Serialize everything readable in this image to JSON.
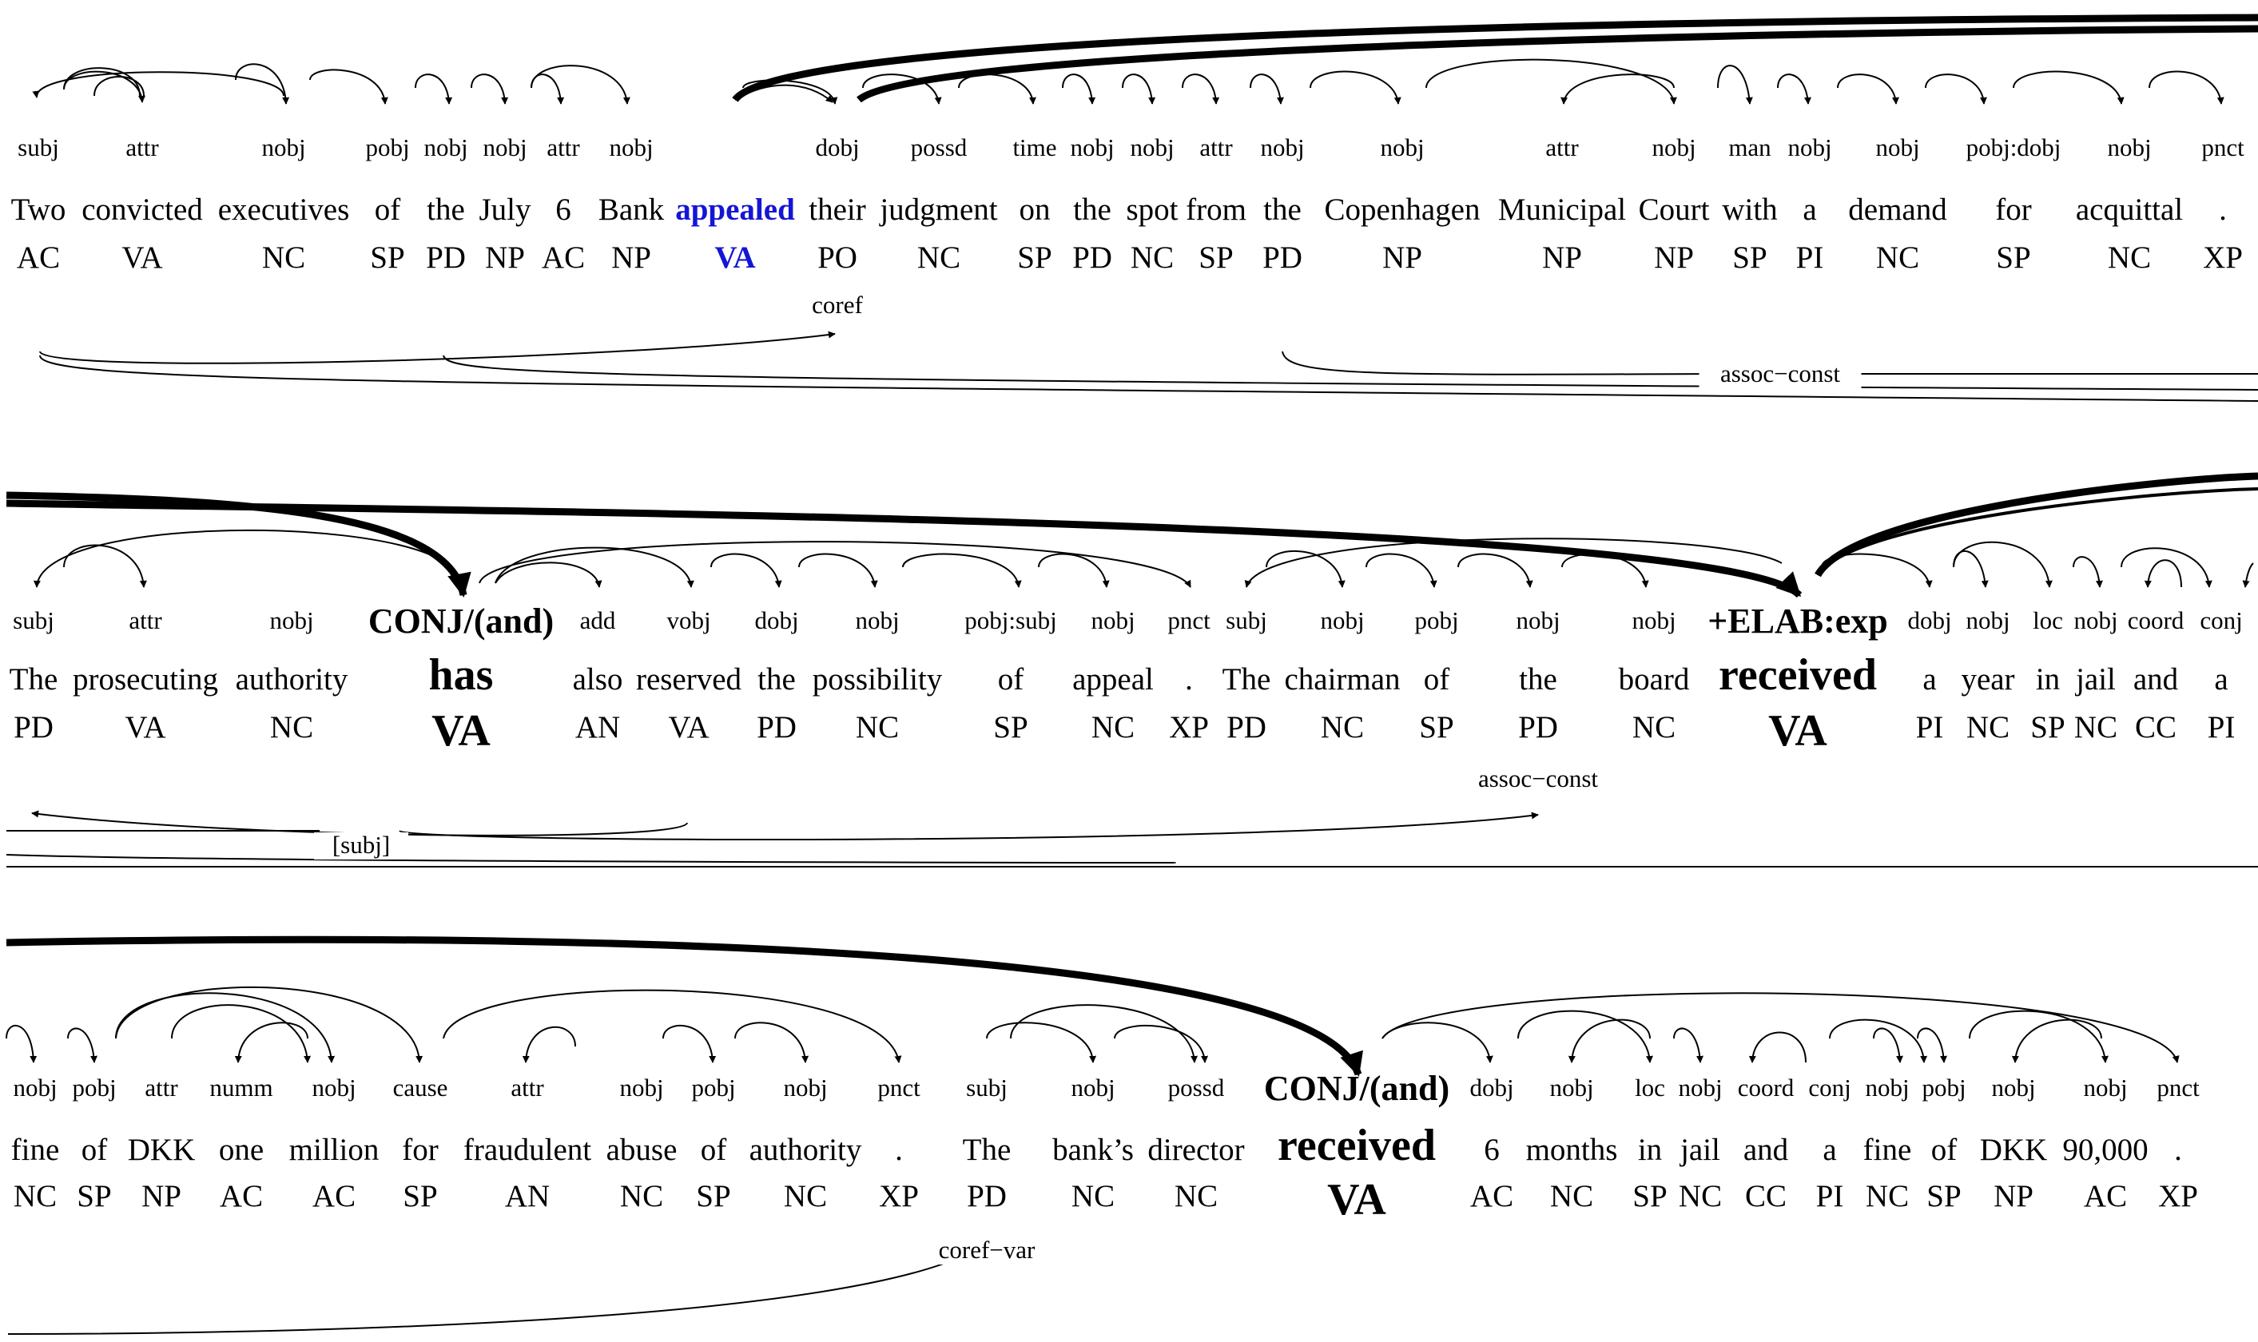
{
  "rows": [
    {
      "tokens": [
        {
          "word": "Two",
          "tag": "AC",
          "rel": "subj"
        },
        {
          "word": "convicted",
          "tag": "VA",
          "rel": "attr"
        },
        {
          "word": "executives",
          "tag": "NC",
          "rel": "nobj"
        },
        {
          "word": "of",
          "tag": "SP",
          "rel": "pobj"
        },
        {
          "word": "the",
          "tag": "PD",
          "rel": "nobj"
        },
        {
          "word": "July",
          "tag": "NP",
          "rel": "nobj"
        },
        {
          "word": "6",
          "tag": "AC",
          "rel": "attr"
        },
        {
          "word": "Bank",
          "tag": "NP",
          "rel": "nobj"
        },
        {
          "word": "appealed",
          "tag": "VA",
          "rel": "",
          "style": "blue"
        },
        {
          "word": "their",
          "tag": "PO",
          "rel": "dobj"
        },
        {
          "word": "judgment",
          "tag": "NC",
          "rel": "possd"
        },
        {
          "word": "on",
          "tag": "SP",
          "rel": "time"
        },
        {
          "word": "the",
          "tag": "PD",
          "rel": "nobj"
        },
        {
          "word": "spot",
          "tag": "NC",
          "rel": "nobj"
        },
        {
          "word": "from",
          "tag": "SP",
          "rel": "attr"
        },
        {
          "word": "the",
          "tag": "PD",
          "rel": "nobj"
        },
        {
          "word": "Copenhagen",
          "tag": "NP",
          "rel": "nobj"
        },
        {
          "word": "Municipal",
          "tag": "NP",
          "rel": "attr"
        },
        {
          "word": "Court",
          "tag": "NP",
          "rel": "nobj"
        },
        {
          "word": "with",
          "tag": "SP",
          "rel": "man"
        },
        {
          "word": "a",
          "tag": "PI",
          "rel": "nobj"
        },
        {
          "word": "demand",
          "tag": "NC",
          "rel": "nobj"
        },
        {
          "word": "for",
          "tag": "SP",
          "rel": "pobj:dobj"
        },
        {
          "word": "acquittal",
          "tag": "NC",
          "rel": "nobj"
        },
        {
          "word": ".",
          "tag": "XP",
          "rel": "pnct"
        }
      ],
      "notes": [
        "coref",
        "assoc−const"
      ]
    },
    {
      "tokens": [
        {
          "word": "The",
          "tag": "PD",
          "rel": "subj"
        },
        {
          "word": "prosecuting",
          "tag": "VA",
          "rel": "attr"
        },
        {
          "word": "authority",
          "tag": "NC",
          "rel": "nobj"
        },
        {
          "word": "has",
          "tag": "VA",
          "rel": "CONJ/(and)",
          "style": "big"
        },
        {
          "word": "also",
          "tag": "AN",
          "rel": "add"
        },
        {
          "word": "reserved",
          "tag": "VA",
          "rel": "vobj"
        },
        {
          "word": "the",
          "tag": "PD",
          "rel": "dobj"
        },
        {
          "word": "possibility",
          "tag": "NC",
          "rel": "nobj"
        },
        {
          "word": "of",
          "tag": "SP",
          "rel": "pobj:subj"
        },
        {
          "word": "appeal",
          "tag": "NC",
          "rel": "nobj"
        },
        {
          "word": ".",
          "tag": "XP",
          "rel": "pnct"
        },
        {
          "word": "The",
          "tag": "PD",
          "rel": "subj"
        },
        {
          "word": "chairman",
          "tag": "NC",
          "rel": "nobj"
        },
        {
          "word": "of",
          "tag": "SP",
          "rel": "pobj"
        },
        {
          "word": "the",
          "tag": "PD",
          "rel": "nobj"
        },
        {
          "word": "board",
          "tag": "NC",
          "rel": "nobj"
        },
        {
          "word": "received",
          "tag": "VA",
          "rel": "+ELAB:exp",
          "style": "big"
        },
        {
          "word": "a",
          "tag": "PI",
          "rel": "dobj"
        },
        {
          "word": "year",
          "tag": "NC",
          "rel": "nobj"
        },
        {
          "word": "in",
          "tag": "SP",
          "rel": "loc"
        },
        {
          "word": "jail",
          "tag": "NC",
          "rel": "nobj"
        },
        {
          "word": "and",
          "tag": "CC",
          "rel": "coord"
        },
        {
          "word": "a",
          "tag": "PI",
          "rel": "conj"
        }
      ],
      "notes": [
        "[subj]",
        "assoc−const"
      ]
    },
    {
      "tokens": [
        {
          "word": "fine",
          "tag": "NC",
          "rel": "nobj"
        },
        {
          "word": "of",
          "tag": "SP",
          "rel": "pobj"
        },
        {
          "word": "DKK",
          "tag": "NP",
          "rel": "attr"
        },
        {
          "word": "one",
          "tag": "AC",
          "rel": "numm"
        },
        {
          "word": "million",
          "tag": "AC",
          "rel": "nobj"
        },
        {
          "word": "for",
          "tag": "SP",
          "rel": "cause"
        },
        {
          "word": "fraudulent",
          "tag": "AN",
          "rel": "attr"
        },
        {
          "word": "abuse",
          "tag": "NC",
          "rel": "nobj"
        },
        {
          "word": "of",
          "tag": "SP",
          "rel": "pobj"
        },
        {
          "word": "authority",
          "tag": "NC",
          "rel": "nobj"
        },
        {
          "word": ".",
          "tag": "XP",
          "rel": "pnct"
        },
        {
          "word": "The",
          "tag": "PD",
          "rel": "subj"
        },
        {
          "word": "bank’s",
          "tag": "NC",
          "rel": "nobj"
        },
        {
          "word": "director",
          "tag": "NC",
          "rel": "possd"
        },
        {
          "word": "received",
          "tag": "VA",
          "rel": "CONJ/(and)",
          "style": "big"
        },
        {
          "word": "6",
          "tag": "AC",
          "rel": "dobj"
        },
        {
          "word": "months",
          "tag": "NC",
          "rel": "nobj"
        },
        {
          "word": "in",
          "tag": "SP",
          "rel": "loc"
        },
        {
          "word": "jail",
          "tag": "NC",
          "rel": "nobj"
        },
        {
          "word": "and",
          "tag": "CC",
          "rel": "coord"
        },
        {
          "word": "a",
          "tag": "PI",
          "rel": "conj"
        },
        {
          "word": "fine",
          "tag": "NC",
          "rel": "nobj"
        },
        {
          "word": "of",
          "tag": "SP",
          "rel": "pobj"
        },
        {
          "word": "DKK",
          "tag": "NP",
          "rel": "nobj"
        },
        {
          "word": "90,000",
          "tag": "AC",
          "rel": "nobj"
        },
        {
          "word": ".",
          "tag": "XP",
          "rel": "pnct"
        }
      ],
      "notes": [
        "coref−var"
      ]
    }
  ],
  "colors": {
    "ink": "#000000",
    "highlight": "#1515d6"
  }
}
